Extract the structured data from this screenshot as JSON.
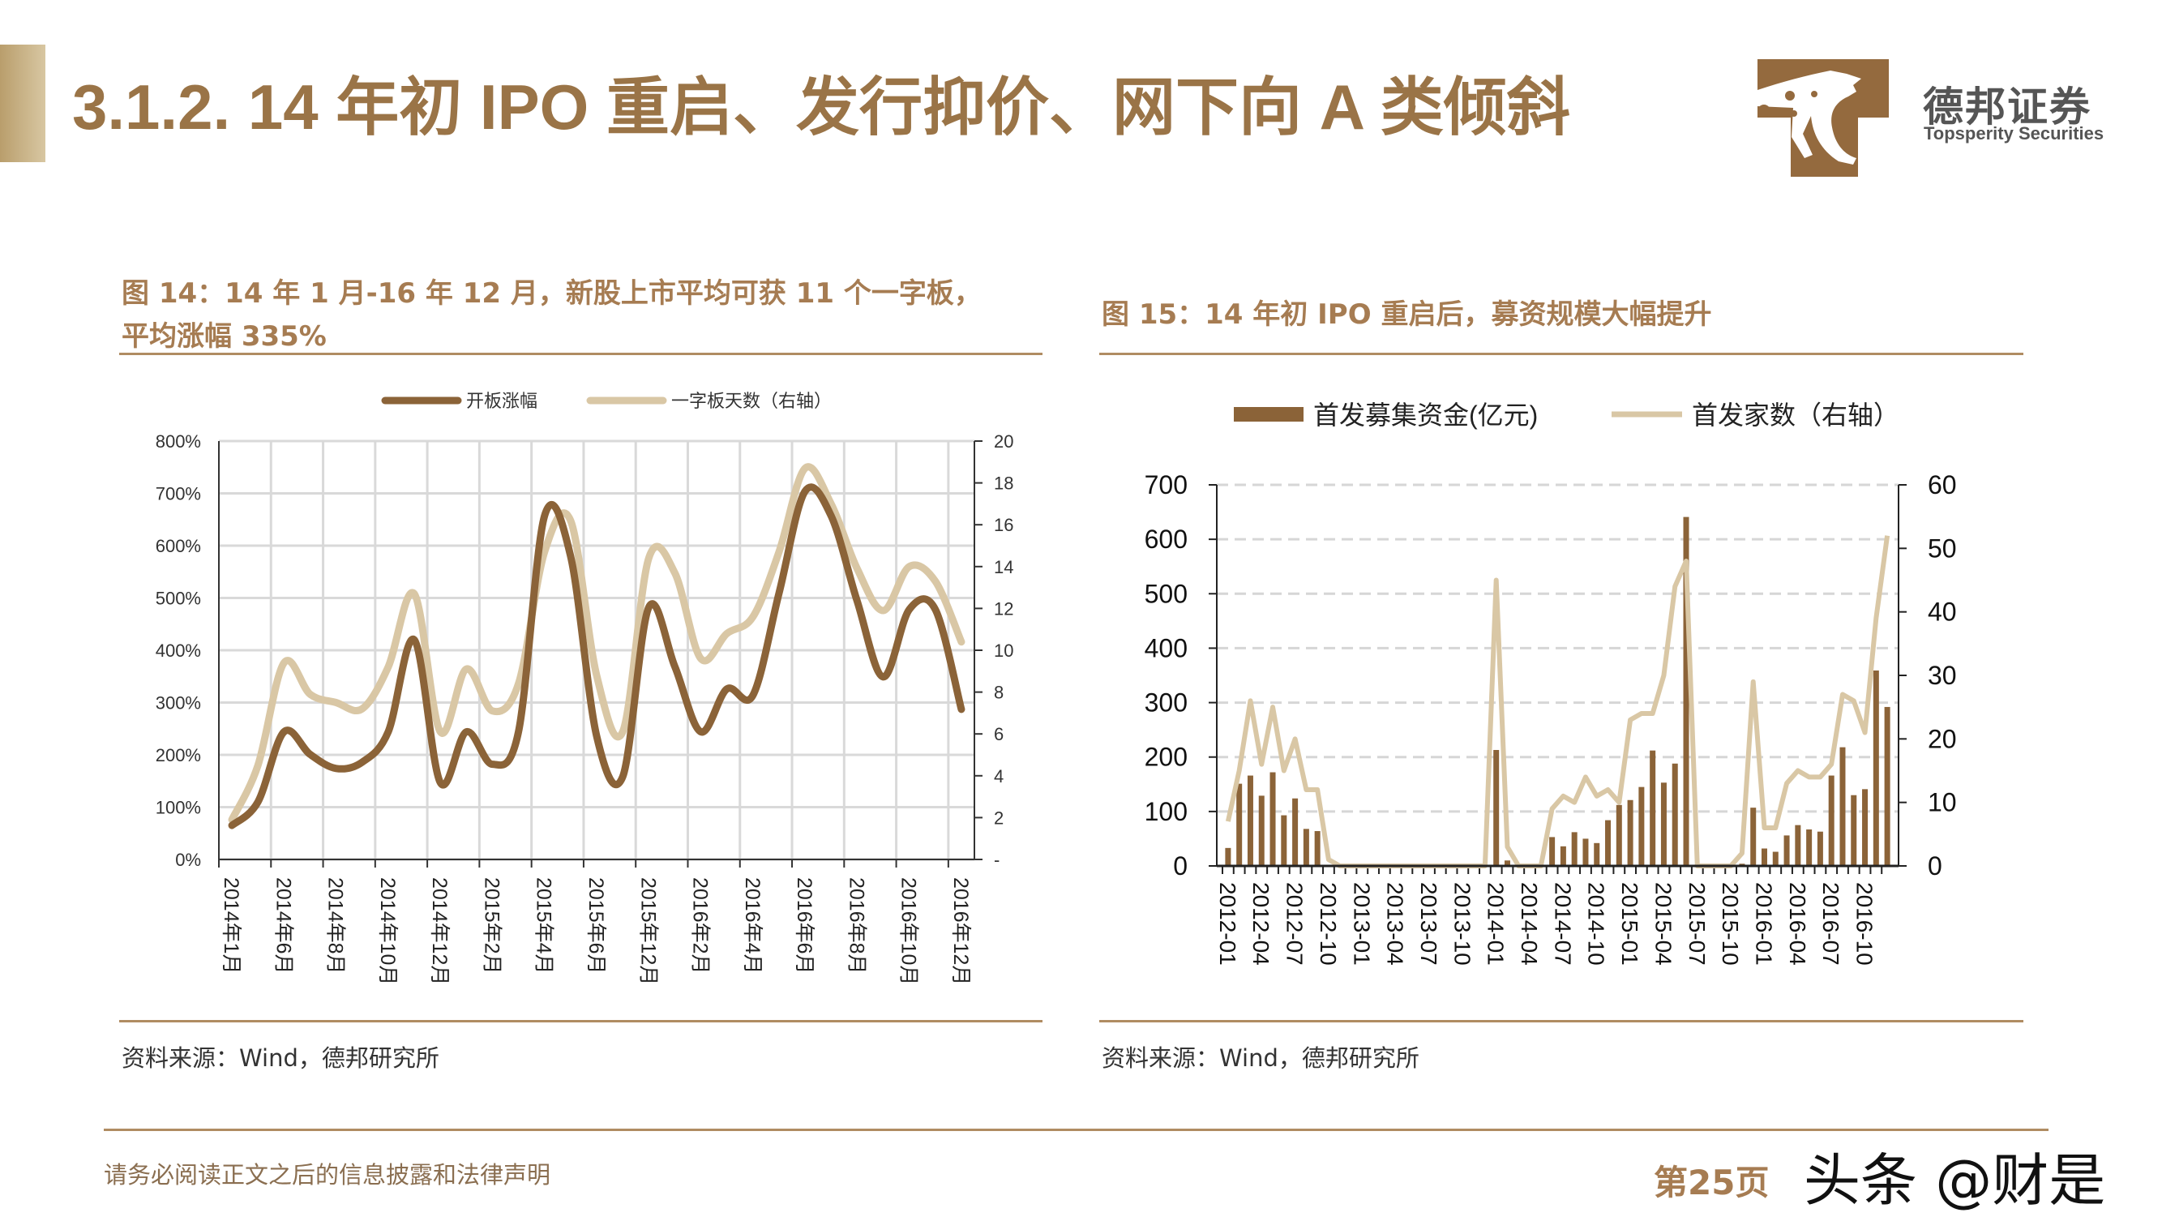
{
  "header": {
    "title": "3.1.2. 14 年初 IPO 重启、发行抑价、网下向 A 类倾斜",
    "brand_cn": "德邦证券",
    "brand_en": "Topsperity Securities",
    "accent": "#9a7447"
  },
  "figure14": {
    "caption_line1": "图 14：14 年 1 月-16 年 12 月，新股上市平均可获 11 个一字板，",
    "caption_line2": "平均涨幅 335%",
    "source": "资料来源：Wind，德邦研究所"
  },
  "figure15": {
    "caption": "图 15：14 年初 IPO 重启后，募资规模大幅提升",
    "source": "资料来源：Wind，德邦研究所"
  },
  "footer": {
    "disclaimer": "请务必阅读正文之后的信息披露和法律声明",
    "page": "第25页",
    "watermark": "头条 @财是"
  },
  "chart_data": [
    {
      "type": "line",
      "legend_placement": "top",
      "grid": true,
      "tick_labels": [
        "2014年1月",
        "2014年6月",
        "2014年8月",
        "2014年10月",
        "2014年12月",
        "2015年2月",
        "2015年4月",
        "2015年6月",
        "2015年12月",
        "2016年2月",
        "2016年4月",
        "2016年6月",
        "2016年8月",
        "2016年10月",
        "2016年12月"
      ],
      "ylim": [
        0,
        800
      ],
      "y_ticks": [
        "0%",
        "100%",
        "200%",
        "300%",
        "400%",
        "500%",
        "600%",
        "700%",
        "800%"
      ],
      "y2lim": [
        0,
        20
      ],
      "y2_ticks": [
        "-",
        "2",
        "4",
        "6",
        "8",
        "10",
        "12",
        "14",
        "16",
        "18",
        "20"
      ],
      "series": [
        {
          "name": "开板涨幅",
          "axis": "left",
          "color": "#8b6338",
          "values": [
            65,
            110,
            244,
            201,
            174,
            186,
            244,
            420,
            147,
            244,
            182,
            244,
            657,
            580,
            236,
            158,
            482,
            369,
            244,
            326,
            314,
            509,
            704,
            657,
            494,
            349,
            478,
            478,
            287
          ]
        },
        {
          "name": "一字板天数（右轴）",
          "axis": "right",
          "color": "#d9c7a5",
          "values": [
            1.9,
            4.5,
            9.4,
            7.9,
            7.5,
            7.2,
            9.2,
            12.7,
            6.1,
            9.1,
            7.1,
            8.4,
            14.7,
            16.2,
            8.8,
            6.1,
            14.4,
            13.7,
            9.6,
            10.8,
            11.6,
            14.7,
            18.7,
            17.0,
            13.9,
            11.9,
            14.0,
            13.3,
            10.4
          ]
        }
      ]
    },
    {
      "type": "bar+line",
      "legend_placement": "top",
      "grid": "dashed-horizontal",
      "tick_labels": [
        "2012-01",
        "2012-04",
        "2012-07",
        "2012-10",
        "2013-01",
        "2013-04",
        "2013-07",
        "2013-10",
        "2014-01",
        "2014-04",
        "2014-07",
        "2014-10",
        "2015-01",
        "2015-04",
        "2015-07",
        "2015-10",
        "2016-01",
        "2016-04",
        "2016-07",
        "2016-10"
      ],
      "x_start": "2012-01",
      "x_end": "2016-12",
      "ylim": [
        0,
        700
      ],
      "y_ticks": [
        "0",
        "100",
        "200",
        "300",
        "400",
        "500",
        "600",
        "700"
      ],
      "y2lim": [
        0,
        60
      ],
      "y2_ticks": [
        "0",
        "10",
        "20",
        "30",
        "40",
        "50",
        "60"
      ],
      "series": [
        {
          "name": "首发募集资金(亿元)",
          "kind": "bar",
          "axis": "left",
          "color": "#8b6338",
          "values": [
            33,
            151,
            166,
            129,
            172,
            93,
            124,
            68,
            64,
            0,
            0,
            0,
            0,
            0,
            0,
            0,
            0,
            0,
            0,
            0,
            0,
            0,
            0,
            0,
            213,
            10,
            0,
            0,
            0,
            53,
            36,
            62,
            50,
            42,
            84,
            112,
            121,
            145,
            212,
            153,
            188,
            641,
            0,
            0,
            0,
            0,
            4,
            107,
            32,
            26,
            56,
            75,
            67,
            63,
            166,
            218,
            130,
            141,
            359,
            292
          ]
        },
        {
          "name": "首发家数（右轴）",
          "kind": "line",
          "axis": "right",
          "color": "#d9c7a5",
          "values": [
            7,
            15,
            26,
            16,
            25,
            15,
            20,
            12,
            12,
            1,
            0,
            0,
            0,
            0,
            0,
            0,
            0,
            0,
            0,
            0,
            0,
            0,
            0,
            0,
            45,
            3,
            0,
            0,
            0,
            9,
            11,
            10,
            14,
            11,
            12,
            10,
            23,
            24,
            24,
            30,
            44,
            48,
            0,
            0,
            0,
            0,
            2,
            29,
            6,
            6,
            13,
            15,
            14,
            14,
            16,
            27,
            26,
            21,
            39,
            52
          ]
        }
      ]
    }
  ]
}
